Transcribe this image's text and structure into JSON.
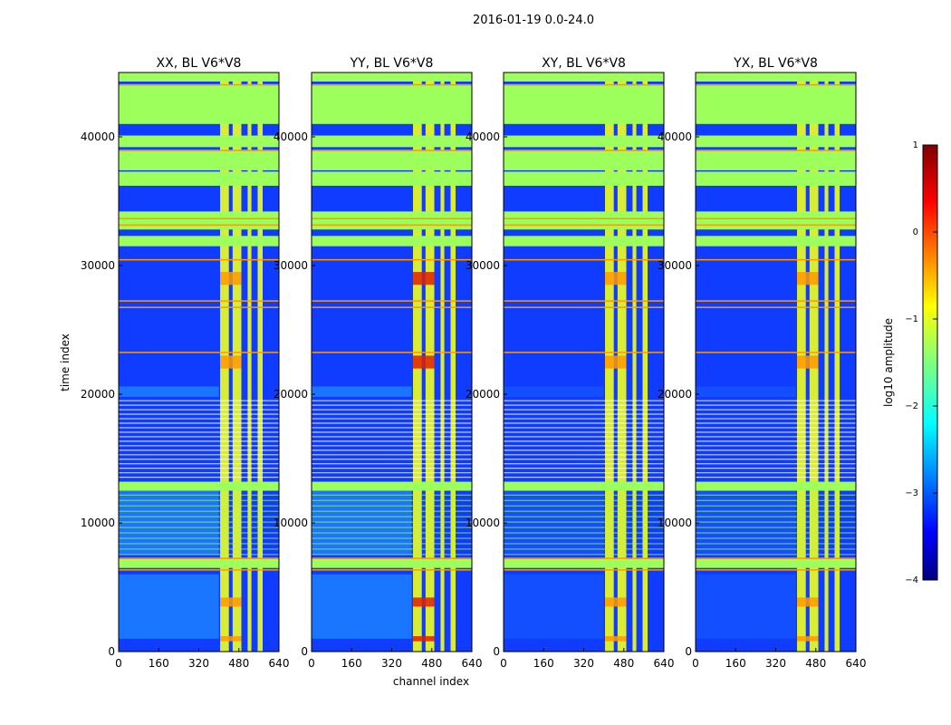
{
  "figure": {
    "suptitle": "2016-01-19 0.0-24.0",
    "xlabel": "channel index",
    "ylabel": "time index"
  },
  "chart_data": [
    {
      "type": "heatmap",
      "title": "XX, BL V6*V8",
      "x_ticks": [
        "0",
        "160",
        "320",
        "480",
        "640"
      ],
      "y_ticks": [
        "0",
        "10000",
        "20000",
        "30000",
        "40000"
      ],
      "xlim": [
        0,
        640
      ],
      "ylim": [
        0,
        45000
      ]
    },
    {
      "type": "heatmap",
      "title": "YY, BL V6*V8",
      "x_ticks": [
        "0",
        "160",
        "320",
        "480",
        "640"
      ],
      "y_ticks": [
        "0",
        "10000",
        "20000",
        "30000",
        "40000"
      ],
      "xlim": [
        0,
        640
      ],
      "ylim": [
        0,
        45000
      ]
    },
    {
      "type": "heatmap",
      "title": "XY, BL V6*V8",
      "x_ticks": [
        "0",
        "160",
        "320",
        "480",
        "640"
      ],
      "y_ticks": [
        "0",
        "10000",
        "20000",
        "30000",
        "40000"
      ],
      "xlim": [
        0,
        640
      ],
      "ylim": [
        0,
        45000
      ]
    },
    {
      "type": "heatmap",
      "title": "YX, BL V6*V8",
      "x_ticks": [
        "0",
        "160",
        "320",
        "480",
        "640"
      ],
      "y_ticks": [
        "0",
        "10000",
        "20000",
        "30000",
        "40000"
      ],
      "xlim": [
        0,
        640
      ],
      "ylim": [
        0,
        45000
      ]
    }
  ],
  "colorbar": {
    "label": "log10 amplitude",
    "ticks": [
      "1",
      "0",
      "−1",
      "−2",
      "−3",
      "−4"
    ],
    "range": [
      -4,
      1
    ]
  },
  "colors": {
    "flag_green": "#9cff5c",
    "background_low": "#0f3cff",
    "rfi_yellow": "#f0ff20",
    "rfi_orange": "#ff9a00",
    "rfi_red": "#e02000",
    "cyan": "#30e0ff"
  }
}
